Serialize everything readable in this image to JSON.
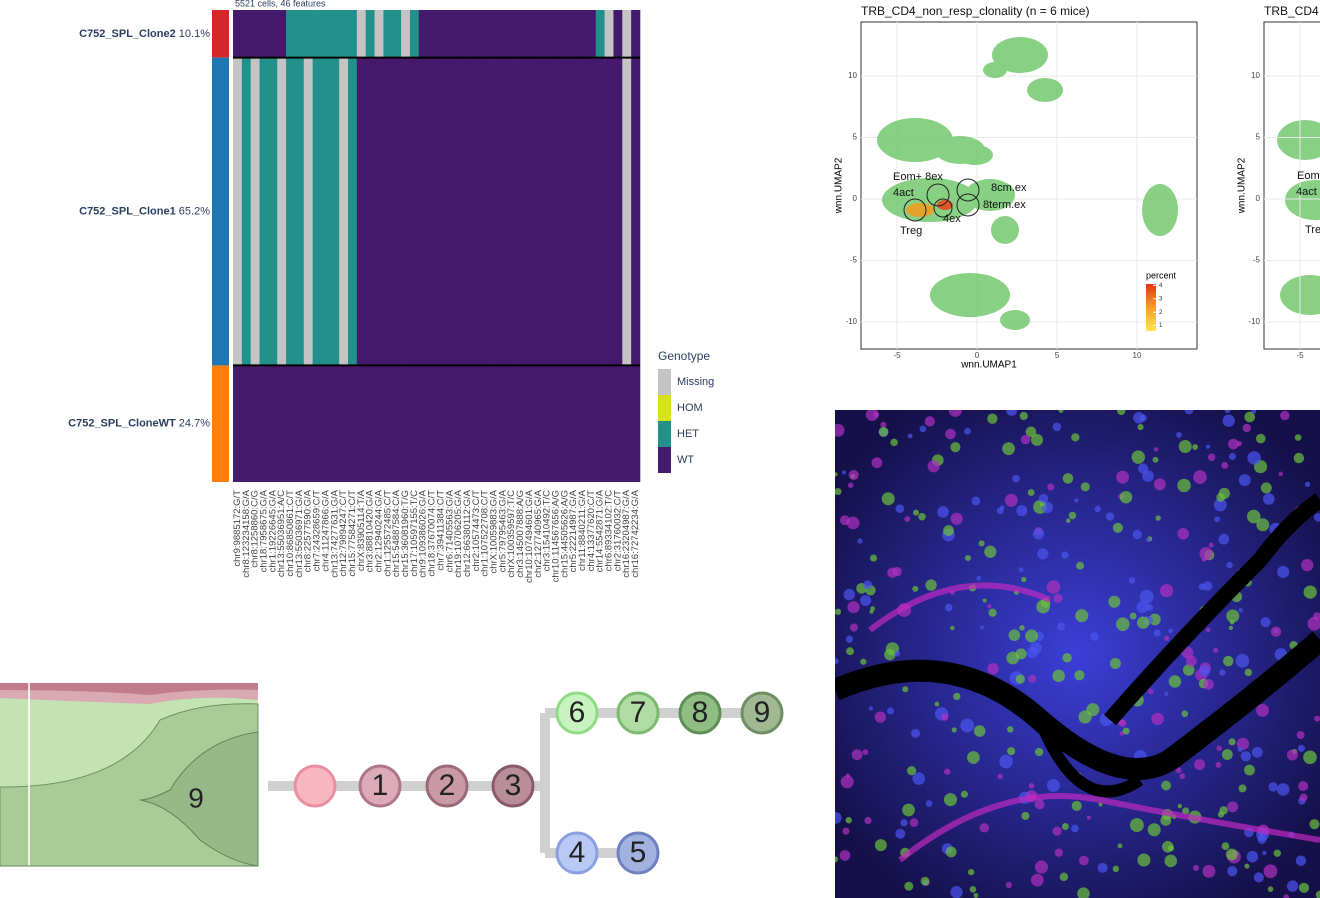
{
  "heatmap": {
    "subtitle": "5521 cells, 46 features",
    "clones": [
      "C752_SPL_Clone2",
      "C752_SPL_Clone1",
      "C752_SPL_CloneWT"
    ],
    "values": [
      10.1,
      65.2,
      24.7
    ],
    "value_labels": [
      "10.1%",
      "65.2%",
      "24.7%"
    ],
    "colors": [
      "#d62728",
      "#1f77b4",
      "#ff7f0e"
    ],
    "features": [
      "chr9:9885172:G/T",
      "chr8:123234158:G/A",
      "chr8:1258860:C/G",
      "chr18:7958675:G/A",
      "chr1:19226645:G/A",
      "chr13:55036951:A/C",
      "chr10:86850861:C/T",
      "chr13:55036971:G/A",
      "chr8:22577590:G/A",
      "chr7:24328659:C/T",
      "chr4:11247866:G/A",
      "chr13:74277631:G/A",
      "chr12:79894247:C/T",
      "chr15:77584271:C/T",
      "chrX:83905114:T/A",
      "chr3:88810420:G/A",
      "chr2:12940244:G/A",
      "chr1:125572485:C/T",
      "chr15:54887584:C/A",
      "chr15:36081960:T/G",
      "chr17:10597155:T/C",
      "chr9:109386026:G/A",
      "chr18:37670074:C/T",
      "chr7:39411384:C/T",
      "chr6:71405563:G/A",
      "chr19:10706205:G/A",
      "chr12:66380112:G/A",
      "chr2:10574473:C/T",
      "chr1:107522708:C/T",
      "chrX:10059883:G/A",
      "chr5:79795463:G/A",
      "chrX:100359597:T/C",
      "chr3:145007888:A/G",
      "chr10:107494601:G/A",
      "chr2:127740965:G/A",
      "chr3:15410492:T/C",
      "chr10:114567656:A/G",
      "chr15:44505626:A/G",
      "chr5:22214987:G/A",
      "chr11:8840211:G/A",
      "chr4:13377620:C/T",
      "chr14:5542871:G/A",
      "chr6:89334102:T/C",
      "chr2:31760032:C/T",
      "chr16:23204987:G/A",
      "chr16:72742234:G/A"
    ],
    "genotype": {
      "title": "Genotype",
      "levels": [
        "Missing",
        "HOM",
        "HET",
        "WT"
      ],
      "colors": [
        "#c4c4c4",
        "#d8e21a",
        "#22918b",
        "#45196b"
      ]
    },
    "dominant": [
      [
        3,
        3,
        3,
        3,
        3,
        3,
        2,
        2,
        2,
        2,
        2,
        2,
        2,
        2,
        0,
        2,
        0,
        2,
        2,
        0,
        2,
        3,
        3,
        3,
        3,
        3,
        3,
        3,
        3,
        3,
        3,
        3,
        3,
        3,
        3,
        3,
        3,
        3,
        3,
        3,
        3,
        2,
        0,
        3,
        0,
        3
      ],
      [
        0,
        2,
        0,
        2,
        2,
        0,
        2,
        2,
        0,
        2,
        2,
        2,
        0,
        2,
        3,
        3,
        3,
        3,
        3,
        3,
        3,
        3,
        3,
        3,
        3,
        3,
        3,
        3,
        3,
        3,
        3,
        3,
        3,
        3,
        3,
        3,
        3,
        3,
        3,
        3,
        3,
        3,
        3,
        3,
        0,
        3
      ],
      [
        3,
        3,
        3,
        3,
        3,
        3,
        3,
        3,
        3,
        3,
        3,
        3,
        3,
        3,
        3,
        3,
        3,
        3,
        3,
        3,
        3,
        3,
        3,
        3,
        3,
        3,
        3,
        3,
        3,
        3,
        3,
        3,
        3,
        3,
        3,
        3,
        3,
        3,
        3,
        3,
        3,
        3,
        3,
        3,
        3,
        3
      ]
    ]
  },
  "umap1": {
    "title": "TRB_CD4_non_resp_clonality (n = 6 mice)",
    "xlabel": "wnn.UMAP1",
    "ylabel": "wnn.UMAP2",
    "xlim": [
      -7.25,
      13.75
    ],
    "ylim": [
      -12.2,
      14.4
    ],
    "xticks": [
      -5,
      0,
      5,
      10
    ],
    "yticks": [
      10,
      5,
      0,
      -5,
      -10
    ],
    "labels": [
      "Eom+ 8ex",
      "4act",
      "Treg",
      "4ex",
      "8cm.ex",
      "8term.ex"
    ],
    "colorbar": {
      "title": "percent",
      "lim": [
        0.6,
        4.1
      ],
      "ticks": [
        1,
        2,
        3,
        4
      ]
    }
  },
  "umap2": {
    "title": "TRB_CD4",
    "ylabel": "wnn.UMAP2",
    "xlim": [
      -7.25,
      13.75
    ],
    "ylim": [
      -12.2,
      14.4
    ],
    "xticks": [
      -5
    ],
    "yticks": [
      10,
      5,
      0,
      -5,
      -10
    ],
    "labels": [
      "Eom",
      "4act",
      "Tre"
    ]
  },
  "fish": {
    "label": "9"
  },
  "tree": {
    "nodes": [
      "1",
      "2",
      "3",
      "6",
      "7",
      "8",
      "9",
      "4",
      "5"
    ]
  }
}
